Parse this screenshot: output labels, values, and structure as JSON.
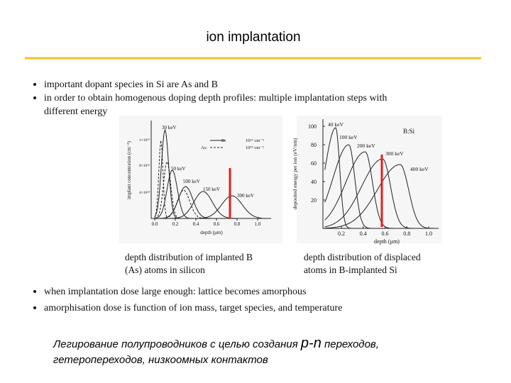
{
  "header": {
    "title": "ion implantation"
  },
  "bullets_top": [
    "important dopant species in Si are As and B",
    "in order to obtain homogenous doping depth profiles: multiple implantation steps with",
    "different energy"
  ],
  "figures": [
    {
      "y_label": "implant concentration (cm⁻³)",
      "x_label": "depth (µm)",
      "x_ticks": [
        "0.0",
        "0.2",
        "0.4",
        "0.6",
        "0.8",
        "1.0"
      ],
      "y_ticks": [
        "1×10¹⁹",
        "8×10¹⁸",
        "4×10¹⁸"
      ],
      "legend": [
        "B:",
        "10¹⁶ cm⁻²",
        "As:",
        "10¹⁵ cm⁻²"
      ],
      "curve_labels": [
        "30 keV",
        "50 keV",
        "500 keV",
        "150 keV",
        "300 keV"
      ],
      "caption": [
        "depth distribution of implanted B",
        "(As) atoms in silicon"
      ]
    },
    {
      "y_label": "deposited energy per ion (eV/nm)",
      "x_label": "depth (µm)",
      "x_ticks": [
        "0.2",
        "0.4",
        "0.6",
        "0.8",
        "1.0"
      ],
      "y_ticks": [
        "100",
        "80",
        "60",
        "40",
        "20"
      ],
      "legend": [
        "B:Si"
      ],
      "curve_labels": [
        "40 keV",
        "100 keV",
        "200 keV",
        "300 keV",
        "400 keV"
      ],
      "caption": [
        "depth distribution of displaced",
        "atoms in B-implanted Si"
      ]
    }
  ],
  "bullets_bottom": [
    "when implantation dose large enough: lattice becomes amorphous",
    "amorphisation dose is function of ion mass, target species, and temperature"
  ],
  "note": {
    "line1": [
      "Легирование полупроводников с целью создания ",
      "p-n",
      " переходов,"
    ],
    "line2": "гетеропереходов, низкоомных контактов"
  }
}
